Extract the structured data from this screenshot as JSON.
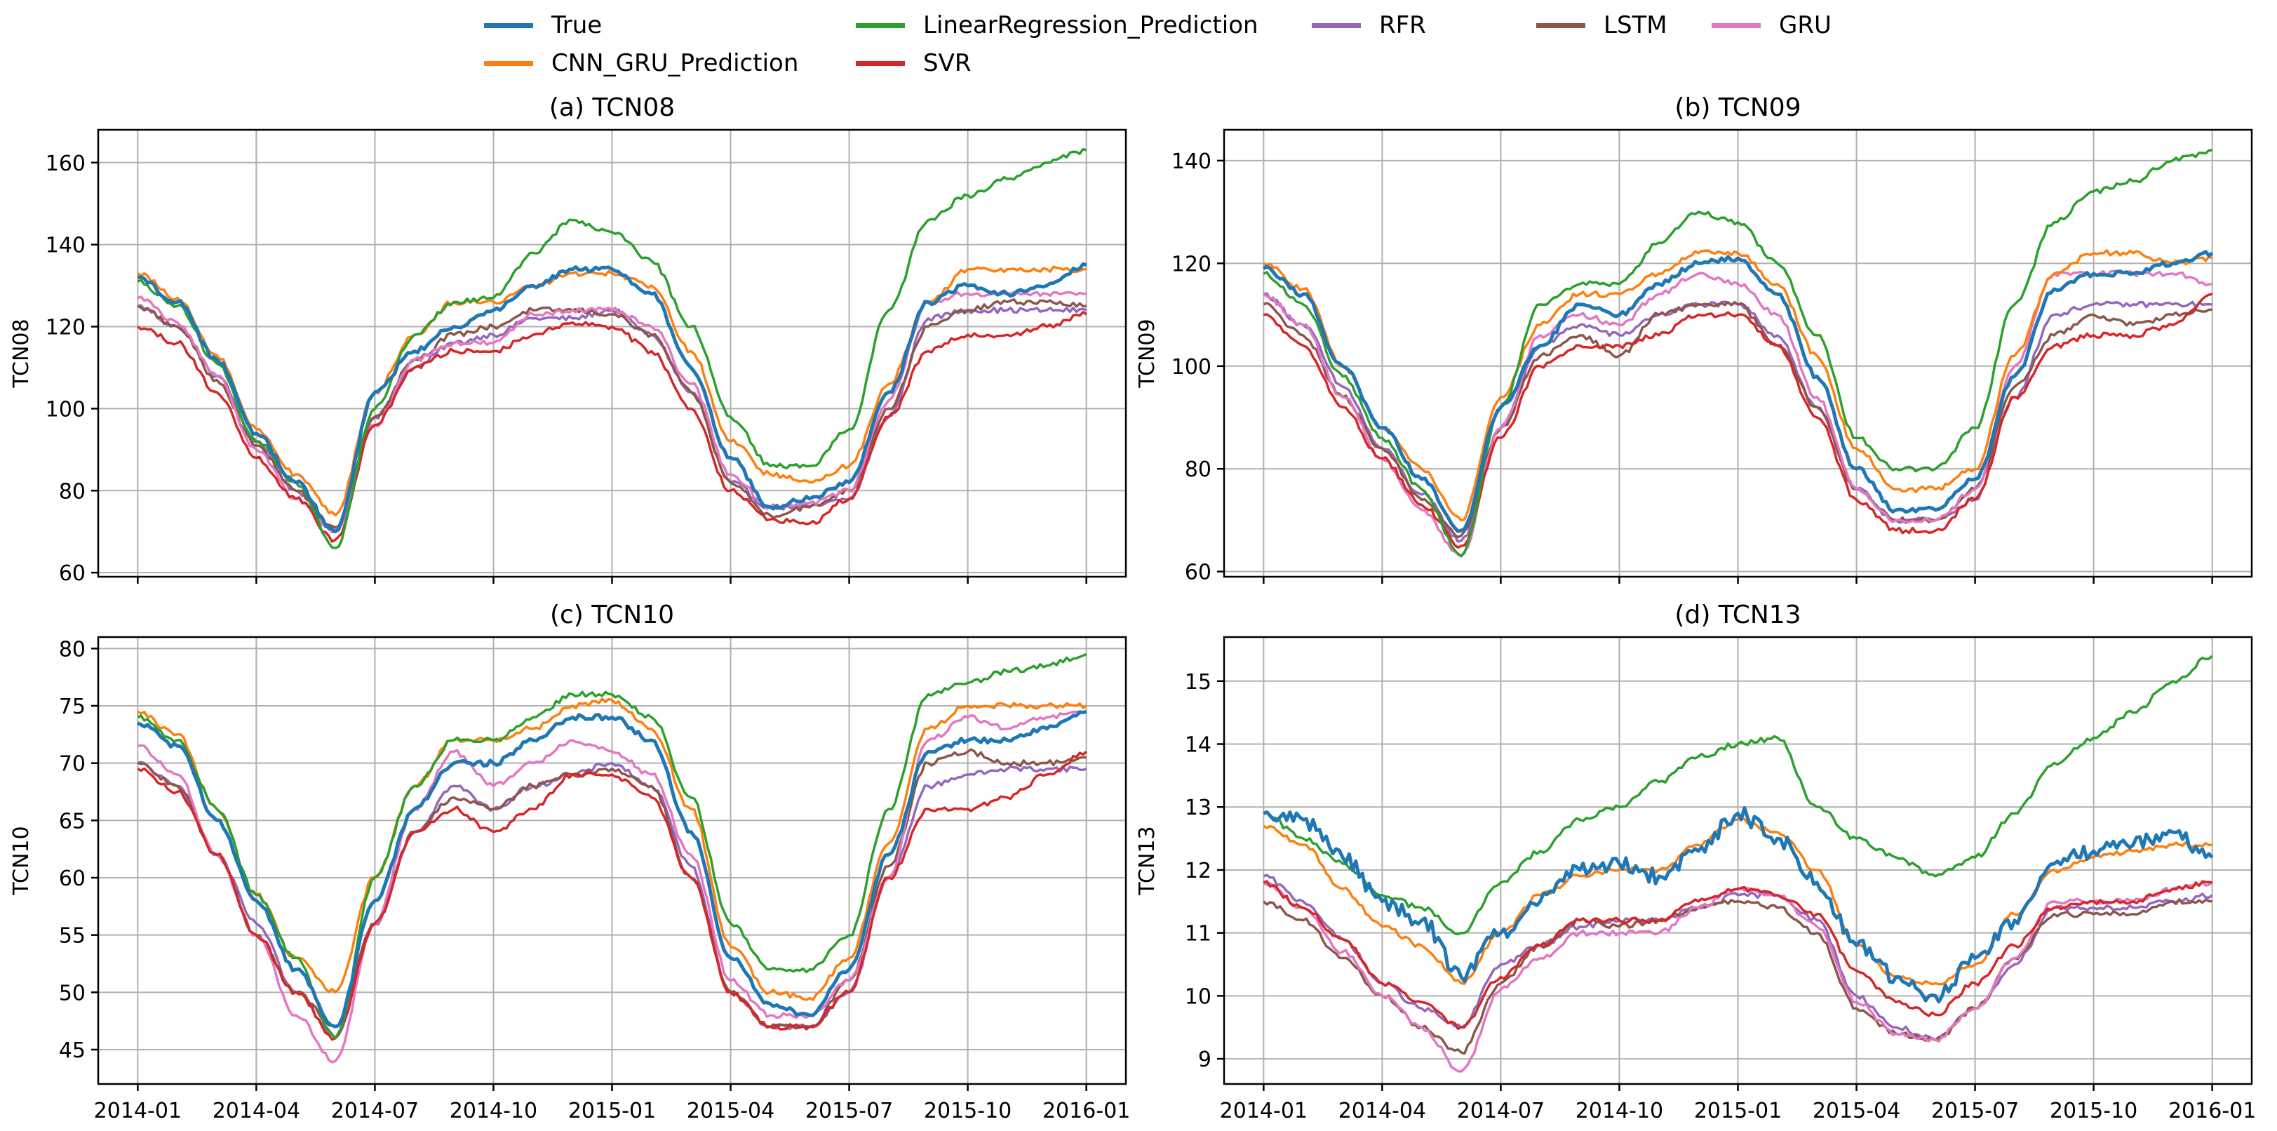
{
  "legend": {
    "entries": [
      {
        "label": "True",
        "color": "#1f77b4"
      },
      {
        "label": "LinearRegression_Prediction",
        "color": "#2ca02c"
      },
      {
        "label": "RFR",
        "color": "#9467bd"
      },
      {
        "label": "LSTM",
        "color": "#8c564b"
      },
      {
        "label": "GRU",
        "color": "#e377c2"
      },
      {
        "label": "CNN_GRU_Prediction",
        "color": "#ff7f0e"
      },
      {
        "label": "SVR",
        "color": "#d62728"
      }
    ]
  },
  "chart_data": [
    {
      "type": "line",
      "title": "(a) TCN08",
      "ylabel": "TCN08",
      "xlabel": "",
      "x": [
        "2014-01",
        "2014-02",
        "2014-03",
        "2014-04",
        "2014-05",
        "2014-06",
        "2014-07",
        "2014-08",
        "2014-09",
        "2014-10",
        "2014-11",
        "2014-12",
        "2015-01",
        "2015-02",
        "2015-03",
        "2015-04",
        "2015-05",
        "2015-06",
        "2015-07",
        "2015-08",
        "2015-09",
        "2015-10",
        "2015-11",
        "2015-12",
        "2016-01"
      ],
      "xticks": [
        "2014-01",
        "2014-04",
        "2014-07",
        "2014-10",
        "2015-01",
        "2015-04",
        "2015-07",
        "2015-10",
        "2016-01"
      ],
      "yticks": [
        60,
        80,
        100,
        120,
        140,
        160
      ],
      "ylim": [
        59,
        168
      ],
      "grid": true,
      "show_x_tick_labels": false,
      "series": [
        {
          "name": "True",
          "values": [
            132,
            126,
            112,
            94,
            82,
            70,
            104,
            114,
            120,
            124,
            130,
            134,
            134,
            128,
            110,
            88,
            76,
            78,
            82,
            104,
            126,
            130,
            128,
            130,
            135
          ]
        },
        {
          "name": "LinearRegression_Prediction",
          "values": [
            131,
            125,
            111,
            92,
            82,
            66,
            100,
            118,
            126,
            127,
            138,
            146,
            143,
            136,
            120,
            98,
            86,
            86,
            95,
            124,
            146,
            152,
            156,
            160,
            163
          ]
        },
        {
          "name": "RFR",
          "values": [
            125,
            120,
            108,
            92,
            80,
            70,
            98,
            110,
            116,
            118,
            122,
            122,
            124,
            118,
            104,
            82,
            76,
            76,
            78,
            98,
            122,
            124,
            124,
            124,
            124
          ]
        },
        {
          "name": "LSTM",
          "values": [
            125,
            120,
            107,
            91,
            80,
            71,
            98,
            112,
            118,
            120,
            124,
            124,
            123,
            118,
            104,
            82,
            74,
            76,
            80,
            100,
            120,
            124,
            126,
            126,
            125
          ]
        },
        {
          "name": "GRU",
          "values": [
            127,
            121,
            108,
            90,
            78,
            70,
            96,
            112,
            116,
            116,
            123,
            124,
            124,
            120,
            106,
            84,
            76,
            77,
            80,
            102,
            126,
            128,
            128,
            128,
            128
          ]
        },
        {
          "name": "CNN_GRU_Prediction",
          "values": [
            133,
            127,
            113,
            95,
            84,
            74,
            104,
            118,
            126,
            126,
            130,
            133,
            133,
            130,
            114,
            92,
            84,
            82,
            86,
            106,
            126,
            134,
            134,
            134,
            134
          ]
        },
        {
          "name": "SVR",
          "values": [
            120,
            116,
            104,
            88,
            78,
            68,
            96,
            110,
            114,
            114,
            118,
            121,
            120,
            114,
            100,
            80,
            73,
            72,
            78,
            98,
            114,
            118,
            118,
            120,
            123
          ]
        }
      ]
    },
    {
      "type": "line",
      "title": "(b) TCN09",
      "ylabel": "TCN09",
      "xlabel": "",
      "x": [
        "2014-01",
        "2014-02",
        "2014-03",
        "2014-04",
        "2014-05",
        "2014-06",
        "2014-07",
        "2014-08",
        "2014-09",
        "2014-10",
        "2014-11",
        "2014-12",
        "2015-01",
        "2015-02",
        "2015-03",
        "2015-04",
        "2015-05",
        "2015-06",
        "2015-07",
        "2015-08",
        "2015-09",
        "2015-10",
        "2015-11",
        "2015-12",
        "2016-01"
      ],
      "xticks": [
        "2014-01",
        "2014-04",
        "2014-07",
        "2014-10",
        "2015-01",
        "2015-04",
        "2015-07",
        "2015-10",
        "2016-01"
      ],
      "yticks": [
        60,
        80,
        100,
        120,
        140
      ],
      "ylim": [
        59,
        146
      ],
      "grid": true,
      "show_x_tick_labels": false,
      "series": [
        {
          "name": "True",
          "values": [
            119,
            114,
            100,
            88,
            78,
            68,
            92,
            104,
            112,
            110,
            116,
            120,
            121,
            114,
            98,
            80,
            72,
            72,
            78,
            98,
            115,
            118,
            118,
            120,
            122
          ]
        },
        {
          "name": "LinearRegression_Prediction",
          "values": [
            118,
            112,
            98,
            86,
            76,
            63,
            92,
            112,
            116,
            116,
            124,
            130,
            128,
            120,
            106,
            86,
            80,
            80,
            88,
            112,
            128,
            134,
            136,
            140,
            142
          ]
        },
        {
          "name": "RFR",
          "values": [
            114,
            108,
            96,
            84,
            75,
            66,
            88,
            104,
            108,
            106,
            110,
            112,
            112,
            106,
            92,
            76,
            70,
            70,
            74,
            94,
            110,
            112,
            112,
            112,
            112
          ]
        },
        {
          "name": "LSTM",
          "values": [
            112,
            106,
            94,
            84,
            74,
            67,
            88,
            102,
            106,
            102,
            110,
            112,
            112,
            104,
            92,
            76,
            70,
            70,
            76,
            96,
            106,
            110,
            108,
            110,
            111
          ]
        },
        {
          "name": "GRU",
          "values": [
            114,
            108,
            94,
            82,
            72,
            63,
            88,
            106,
            110,
            108,
            114,
            118,
            116,
            110,
            94,
            76,
            70,
            70,
            76,
            100,
            118,
            118,
            118,
            118,
            116
          ]
        },
        {
          "name": "CNN_GRU_Prediction",
          "values": [
            120,
            115,
            100,
            88,
            80,
            70,
            94,
            108,
            114,
            114,
            118,
            122,
            122,
            116,
            102,
            84,
            76,
            76,
            80,
            102,
            118,
            122,
            122,
            120,
            121
          ]
        },
        {
          "name": "SVR",
          "values": [
            110,
            104,
            92,
            82,
            73,
            65,
            86,
            100,
            104,
            104,
            106,
            110,
            110,
            104,
            90,
            74,
            68,
            68,
            74,
            94,
            104,
            106,
            106,
            108,
            114
          ]
        }
      ]
    },
    {
      "type": "line",
      "title": "(c) TCN10",
      "ylabel": "TCN10",
      "xlabel": "",
      "x": [
        "2014-01",
        "2014-02",
        "2014-03",
        "2014-04",
        "2014-05",
        "2014-06",
        "2014-07",
        "2014-08",
        "2014-09",
        "2014-10",
        "2014-11",
        "2014-12",
        "2015-01",
        "2015-02",
        "2015-03",
        "2015-04",
        "2015-05",
        "2015-06",
        "2015-07",
        "2015-08",
        "2015-09",
        "2015-10",
        "2015-11",
        "2015-12",
        "2016-01"
      ],
      "xticks": [
        "2014-01",
        "2014-04",
        "2014-07",
        "2014-10",
        "2015-01",
        "2015-04",
        "2015-07",
        "2015-10",
        "2016-01"
      ],
      "yticks": [
        45,
        50,
        55,
        60,
        65,
        70,
        75,
        80
      ],
      "ylim": [
        42,
        81
      ],
      "grid": true,
      "show_x_tick_labels": true,
      "series": [
        {
          "name": "True",
          "values": [
            73.5,
            71.5,
            65,
            58,
            52,
            47,
            58,
            66,
            70,
            70,
            72,
            74,
            74,
            72,
            64,
            53,
            49,
            48,
            52,
            62,
            71,
            72,
            72,
            73,
            74.5
          ]
        },
        {
          "name": "LinearRegression_Prediction",
          "values": [
            74,
            72,
            66,
            58.5,
            53,
            46,
            60,
            68,
            72,
            72,
            74,
            76,
            76,
            74,
            67,
            56,
            52,
            52,
            55,
            66,
            76,
            77,
            78,
            78.5,
            79.5
          ]
        },
        {
          "name": "RFR",
          "values": [
            70,
            68,
            62,
            56,
            50,
            46,
            56,
            64,
            68,
            66,
            68,
            69,
            70,
            68,
            61,
            50,
            47,
            47,
            50,
            60,
            68,
            69,
            69.5,
            69.5,
            69.5
          ]
        },
        {
          "name": "LSTM",
          "values": [
            70,
            68,
            62,
            55,
            50,
            47,
            56,
            64,
            67,
            66,
            68,
            69,
            69.5,
            68,
            60,
            50,
            47,
            47,
            51,
            61,
            70,
            71,
            70,
            70,
            70.5
          ]
        },
        {
          "name": "GRU",
          "values": [
            71.5,
            69,
            62,
            55,
            48,
            44,
            56,
            66,
            71,
            68,
            70,
            72,
            71,
            69,
            62,
            51,
            48,
            48,
            51,
            60,
            72,
            74,
            73,
            74,
            74.5
          ]
        },
        {
          "name": "CNN_GRU_Prediction",
          "values": [
            74.5,
            72.5,
            66,
            58.5,
            53,
            50,
            60,
            68,
            72,
            72,
            73,
            75,
            75.5,
            73,
            66,
            54,
            50,
            49.5,
            53,
            63,
            73,
            75,
            75,
            75,
            75
          ]
        },
        {
          "name": "SVR",
          "values": [
            69.5,
            67.5,
            62,
            55,
            50,
            46,
            56,
            64,
            66,
            64,
            66,
            69,
            69,
            67,
            60,
            50,
            47,
            47,
            50,
            60,
            66,
            66,
            67,
            69,
            71
          ]
        }
      ]
    },
    {
      "type": "line",
      "title": "(d) TCN13",
      "ylabel": "TCN13",
      "xlabel": "",
      "x": [
        "2014-01",
        "2014-02",
        "2014-03",
        "2014-04",
        "2014-05",
        "2014-06",
        "2014-07",
        "2014-08",
        "2014-09",
        "2014-10",
        "2014-11",
        "2014-12",
        "2015-01",
        "2015-02",
        "2015-03",
        "2015-04",
        "2015-05",
        "2015-06",
        "2015-07",
        "2015-08",
        "2015-09",
        "2015-10",
        "2015-11",
        "2015-12",
        "2016-01"
      ],
      "xticks": [
        "2014-01",
        "2014-04",
        "2014-07",
        "2014-10",
        "2015-01",
        "2015-04",
        "2015-07",
        "2015-10",
        "2016-01"
      ],
      "yticks": [
        9,
        10,
        11,
        12,
        13,
        14,
        15
      ],
      "ylim": [
        8.6,
        15.7
      ],
      "grid": true,
      "show_x_tick_labels": true,
      "series": [
        {
          "name": "True",
          "values": [
            12.9,
            12.8,
            12.2,
            11.5,
            11.2,
            10.3,
            11.0,
            11.5,
            12.0,
            12.1,
            11.9,
            12.3,
            12.9,
            12.5,
            11.8,
            10.8,
            10.3,
            10.0,
            10.6,
            11.2,
            12.1,
            12.3,
            12.4,
            12.6,
            12.2
          ]
        },
        {
          "name": "LinearRegression_Prediction",
          "values": [
            12.9,
            12.5,
            12.1,
            11.6,
            11.4,
            11.0,
            11.8,
            12.3,
            12.8,
            13.0,
            13.4,
            13.8,
            14.0,
            14.1,
            13.0,
            12.5,
            12.2,
            11.9,
            12.2,
            12.9,
            13.7,
            14.1,
            14.5,
            15.0,
            15.4
          ]
        },
        {
          "name": "RFR",
          "values": [
            11.9,
            11.5,
            10.9,
            10.2,
            9.8,
            9.5,
            10.5,
            10.8,
            11.1,
            11.2,
            11.2,
            11.4,
            11.6,
            11.6,
            11.2,
            10.0,
            9.5,
            9.3,
            9.8,
            10.5,
            11.4,
            11.4,
            11.4,
            11.5,
            11.6
          ]
        },
        {
          "name": "LSTM",
          "values": [
            11.5,
            11.2,
            10.6,
            10.0,
            9.5,
            9.1,
            10.2,
            10.8,
            11.2,
            11.1,
            11.2,
            11.4,
            11.5,
            11.4,
            11.0,
            9.8,
            9.4,
            9.3,
            9.8,
            10.6,
            11.3,
            11.3,
            11.3,
            11.5,
            11.5
          ]
        },
        {
          "name": "GRU",
          "values": [
            11.8,
            11.4,
            10.7,
            10.0,
            9.5,
            8.8,
            10.1,
            10.6,
            11.0,
            11.0,
            11.0,
            11.4,
            11.7,
            11.6,
            11.1,
            9.9,
            9.4,
            9.3,
            9.8,
            10.6,
            11.5,
            11.5,
            11.5,
            11.7,
            11.8
          ]
        },
        {
          "name": "CNN_GRU_Prediction",
          "values": [
            12.7,
            12.4,
            11.7,
            11.1,
            10.8,
            10.2,
            11.0,
            11.6,
            11.9,
            12.0,
            12.0,
            12.4,
            12.8,
            12.6,
            12.0,
            10.8,
            10.3,
            10.2,
            10.5,
            11.3,
            12.0,
            12.2,
            12.3,
            12.4,
            12.4
          ]
        },
        {
          "name": "SVR",
          "values": [
            11.8,
            11.4,
            10.9,
            10.2,
            9.9,
            9.5,
            10.3,
            10.8,
            11.2,
            11.2,
            11.2,
            11.5,
            11.7,
            11.6,
            11.3,
            10.4,
            9.9,
            9.7,
            10.2,
            10.8,
            11.4,
            11.5,
            11.5,
            11.7,
            11.8
          ]
        }
      ]
    }
  ]
}
